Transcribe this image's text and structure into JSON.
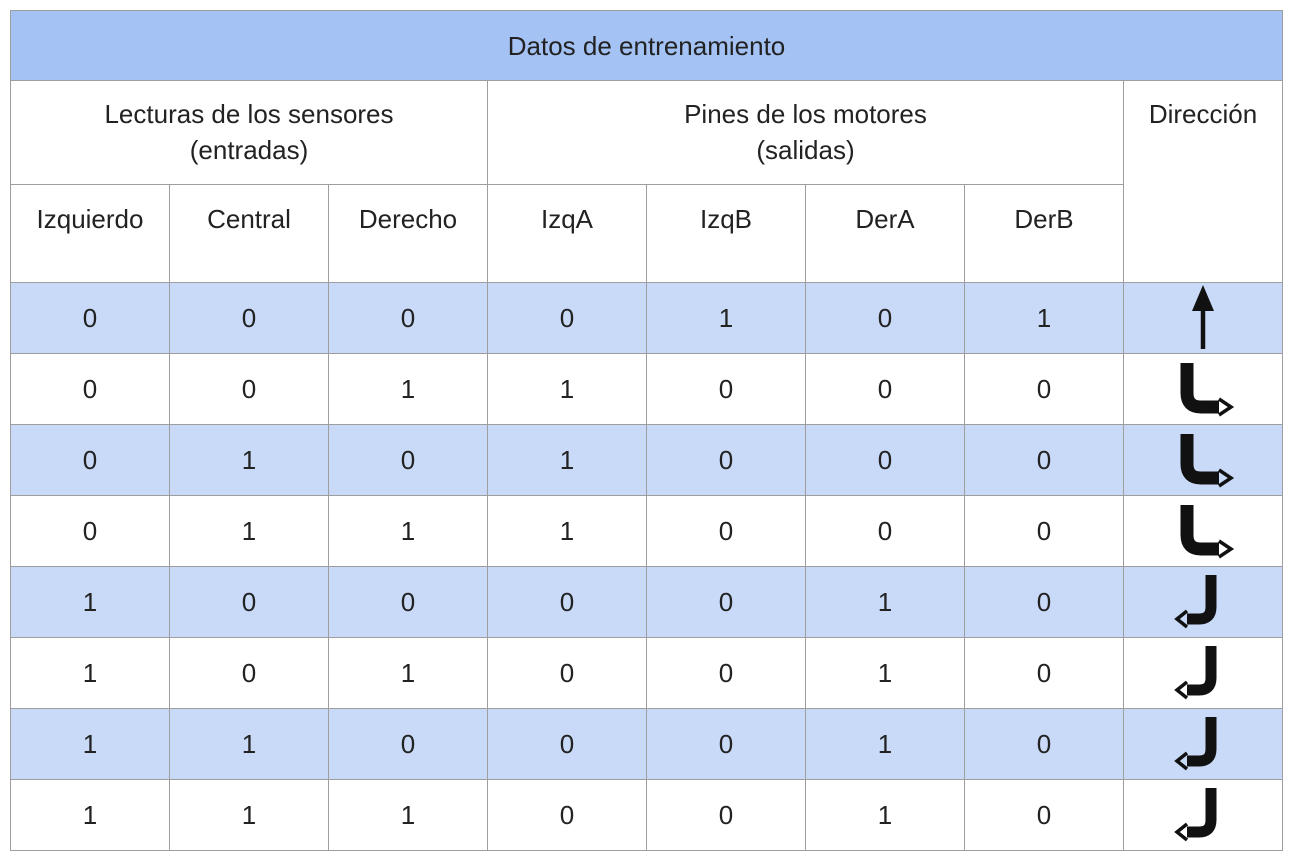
{
  "table": {
    "title": "Datos de entrenamiento",
    "groups": {
      "inputs": "Lecturas de los sensores\n(entradas)",
      "outputs": "Pines de los motores\n(salidas)",
      "direction": "Dirección"
    },
    "columns": [
      "Izquierdo",
      "Central",
      "Derecho",
      "IzqA",
      "IzqB",
      "DerA",
      "DerB"
    ],
    "rows": [
      {
        "values": [
          "0",
          "0",
          "0",
          "0",
          "1",
          "0",
          "1"
        ],
        "direction_icon": "arrow-up-icon"
      },
      {
        "values": [
          "0",
          "0",
          "1",
          "1",
          "0",
          "0",
          "0"
        ],
        "direction_icon": "turn-right-arrow-icon"
      },
      {
        "values": [
          "0",
          "1",
          "0",
          "1",
          "0",
          "0",
          "0"
        ],
        "direction_icon": "turn-right-arrow-icon"
      },
      {
        "values": [
          "0",
          "1",
          "1",
          "1",
          "0",
          "0",
          "0"
        ],
        "direction_icon": "turn-right-arrow-icon"
      },
      {
        "values": [
          "1",
          "0",
          "0",
          "0",
          "0",
          "1",
          "0"
        ],
        "direction_icon": "turn-left-arrow-icon"
      },
      {
        "values": [
          "1",
          "0",
          "1",
          "0",
          "0",
          "1",
          "0"
        ],
        "direction_icon": "turn-left-arrow-icon"
      },
      {
        "values": [
          "1",
          "1",
          "0",
          "0",
          "0",
          "1",
          "0"
        ],
        "direction_icon": "turn-left-arrow-icon"
      },
      {
        "values": [
          "1",
          "1",
          "1",
          "0",
          "0",
          "1",
          "0"
        ],
        "direction_icon": "turn-left-arrow-icon"
      }
    ],
    "colors": {
      "header_bg": "#a4c2f4",
      "row_shade": "#c9daf8",
      "border": "#9e9e9e"
    }
  }
}
